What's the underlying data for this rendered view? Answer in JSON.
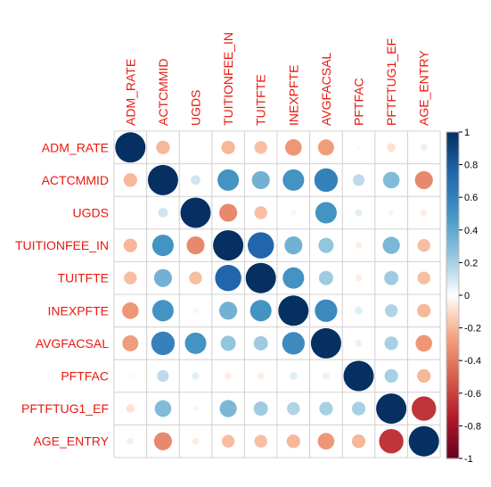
{
  "chart_data": {
    "type": "heatmap",
    "title": "",
    "variables": [
      "ADM_RATE",
      "ACTCMMID",
      "UGDS",
      "TUITIONFEE_IN",
      "TUITFTE",
      "INEXPFTE",
      "AVGFACSAL",
      "PFTFAC",
      "PFTFTUG1_EF",
      "AGE_ENTRY"
    ],
    "matrix": [
      [
        1.0,
        -0.2,
        0.0,
        -0.2,
        -0.18,
        -0.3,
        -0.28,
        -0.02,
        -0.08,
        0.05
      ],
      [
        -0.2,
        1.0,
        0.1,
        0.5,
        0.35,
        0.5,
        0.6,
        0.15,
        0.3,
        -0.35
      ],
      [
        0.0,
        0.1,
        1.0,
        -0.35,
        -0.18,
        0.03,
        0.5,
        0.06,
        0.03,
        -0.05
      ],
      [
        -0.2,
        0.5,
        -0.35,
        1.0,
        0.75,
        0.35,
        0.25,
        -0.05,
        0.32,
        -0.18
      ],
      [
        -0.18,
        0.35,
        -0.18,
        0.75,
        1.0,
        0.5,
        0.22,
        -0.05,
        0.22,
        -0.18
      ],
      [
        -0.3,
        0.5,
        0.03,
        0.35,
        0.5,
        1.0,
        0.55,
        0.07,
        0.18,
        -0.2
      ],
      [
        -0.28,
        0.6,
        0.5,
        0.25,
        0.22,
        0.55,
        1.0,
        0.05,
        0.2,
        -0.3
      ],
      [
        -0.02,
        0.15,
        0.06,
        -0.05,
        -0.05,
        0.07,
        0.05,
        1.0,
        0.2,
        -0.2
      ],
      [
        -0.08,
        0.3,
        0.03,
        0.32,
        0.22,
        0.18,
        0.2,
        0.2,
        1.0,
        -0.65
      ],
      [
        0.05,
        -0.35,
        -0.05,
        -0.18,
        -0.18,
        -0.2,
        -0.3,
        -0.2,
        -0.65,
        1.0
      ]
    ],
    "legend": {
      "range": [
        -1,
        1
      ],
      "ticks": [
        "1",
        "0.8",
        "0.6",
        "0.4",
        "0.2",
        "0",
        "-0.2",
        "-0.4",
        "-0.6",
        "-0.8",
        "-1"
      ],
      "position": "right"
    },
    "colors": {
      "positive": "#053061",
      "neutral": "#ffffff",
      "negative": "#67001f",
      "labels": "#e8190f",
      "grid": "#d0d0d0"
    }
  }
}
